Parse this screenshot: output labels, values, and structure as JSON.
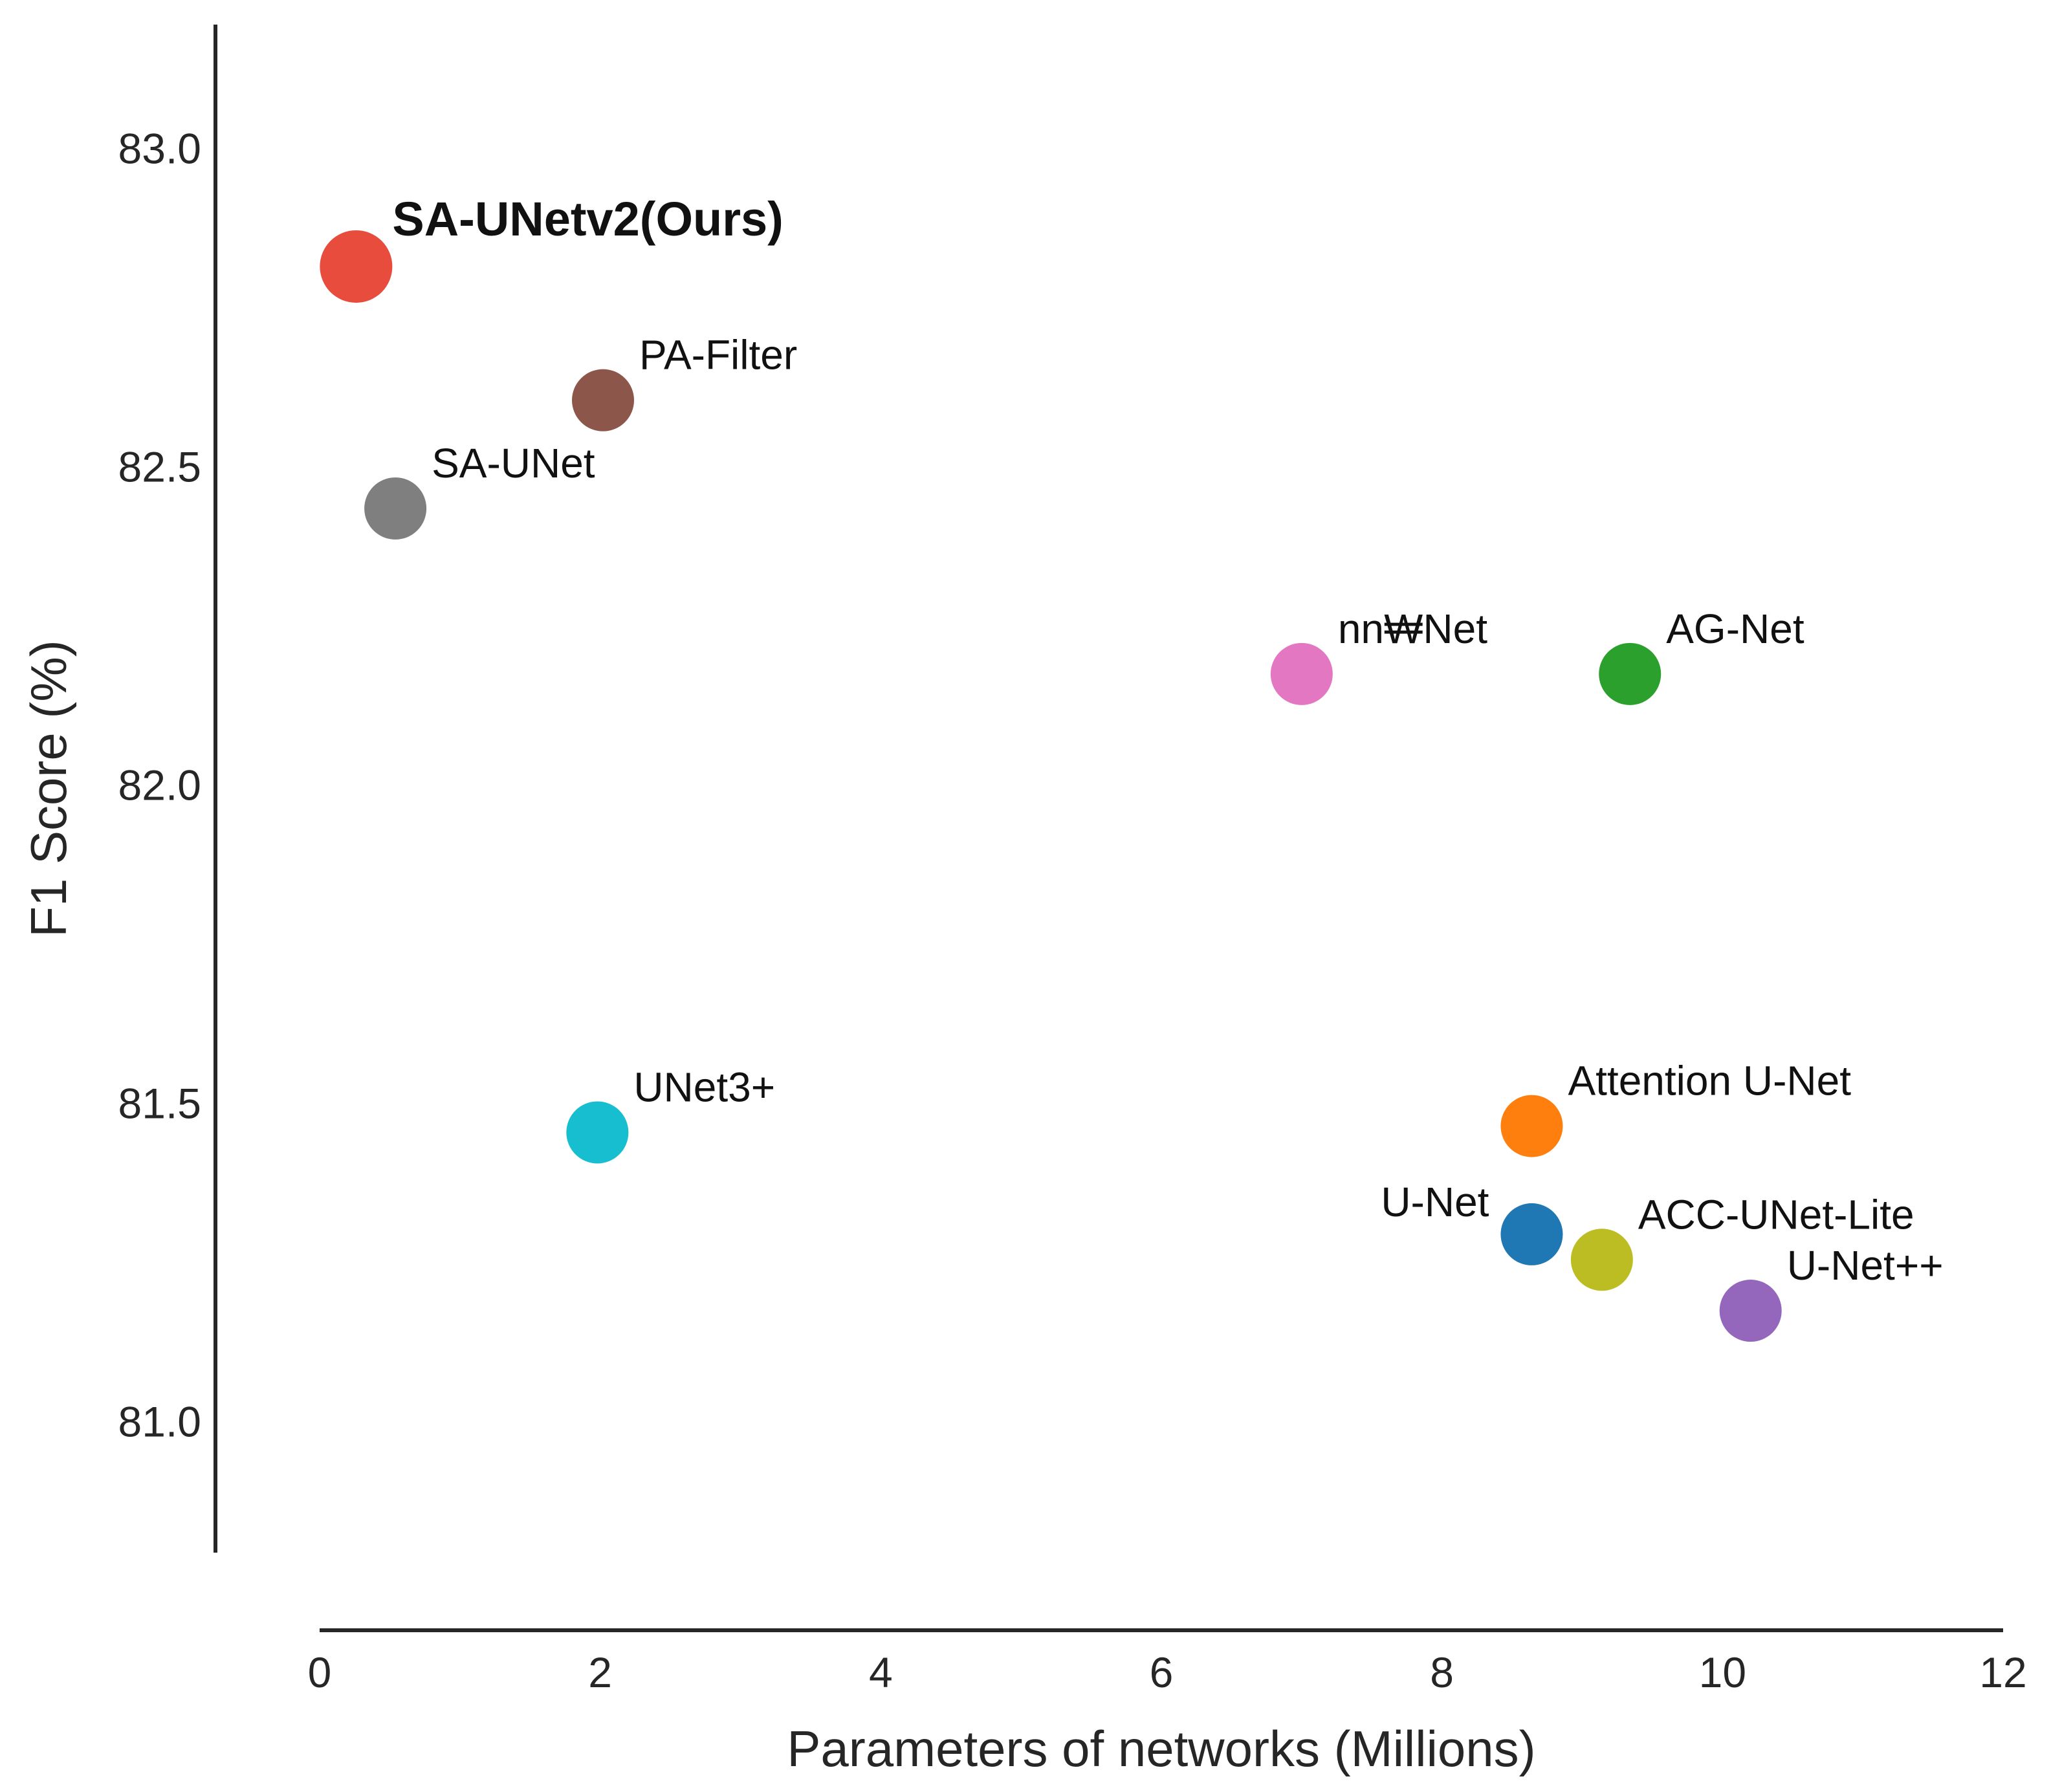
{
  "chart_data": {
    "type": "scatter",
    "title": "",
    "xlabel": "Parameters of networks (Millions)",
    "ylabel": "F1 Score (%)",
    "xlim": [
      0,
      12
    ],
    "ylim": [
      80.8,
      83.2
    ],
    "xticks": [
      0,
      2,
      4,
      6,
      8,
      10,
      12
    ],
    "xtick_labels": [
      "0",
      "2",
      "4",
      "6",
      "8",
      "10",
      "12"
    ],
    "yticks": [
      81.0,
      81.5,
      82.0,
      82.5,
      83.0
    ],
    "ytick_labels": [
      "81.0",
      "81.5",
      "82.0",
      "82.5",
      "83.0"
    ],
    "grid": false,
    "points": [
      {
        "label": "SA-UNetv2(Ours)",
        "x": 0.26,
        "y": 82.82,
        "color": "#e74c3c",
        "highlight": true,
        "label_pos": "right"
      },
      {
        "label": "PA-Filter",
        "x": 2.02,
        "y": 82.61,
        "color": "#8c564b",
        "highlight": false,
        "label_pos": "right"
      },
      {
        "label": "SA-UNet",
        "x": 0.54,
        "y": 82.44,
        "color": "#7f7f7f",
        "highlight": false,
        "label_pos": "right"
      },
      {
        "label": "nn₩Net",
        "x": 7.0,
        "y": 82.18,
        "color": "#e377c2",
        "highlight": false,
        "label_pos": "right"
      },
      {
        "label": "AG-Net",
        "x": 9.34,
        "y": 82.18,
        "color": "#2ca02c",
        "highlight": false,
        "label_pos": "right"
      },
      {
        "label": "UNet3+",
        "x": 1.98,
        "y": 81.46,
        "color": "#17becf",
        "highlight": false,
        "label_pos": "right"
      },
      {
        "label": "Attention U-Net",
        "x": 8.64,
        "y": 81.47,
        "color": "#ff7f0e",
        "highlight": false,
        "label_pos": "right"
      },
      {
        "label": "U-Net",
        "x": 8.64,
        "y": 81.3,
        "color": "#1f77b4",
        "highlight": false,
        "label_pos": "left"
      },
      {
        "label": "ACC-UNet-Lite",
        "x": 9.14,
        "y": 81.26,
        "color": "#bcbd22",
        "highlight": false,
        "label_pos": "right"
      },
      {
        "label": "U-Net++",
        "x": 10.2,
        "y": 81.18,
        "color": "#9467bd",
        "highlight": false,
        "label_pos": "right"
      }
    ]
  }
}
